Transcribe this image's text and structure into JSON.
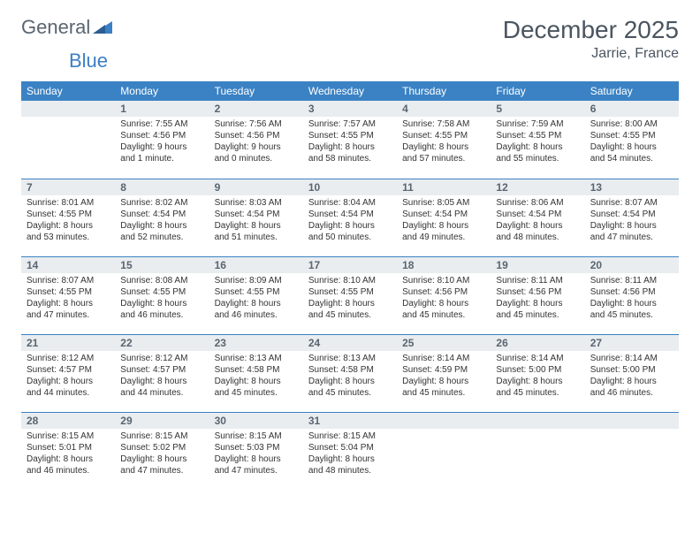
{
  "brand": {
    "part1": "General",
    "part2": "Blue"
  },
  "title": "December 2025",
  "location": "Jarrie, France",
  "colors": {
    "header_bg": "#3b82c4",
    "header_text": "#ffffff",
    "daynum_bg": "#e9edf0",
    "daynum_text": "#5a6570",
    "row_border": "#3b82c4",
    "logo_gray": "#5a6570",
    "logo_blue": "#3b7fc4"
  },
  "dayHeaders": [
    "Sunday",
    "Monday",
    "Tuesday",
    "Wednesday",
    "Thursday",
    "Friday",
    "Saturday"
  ],
  "weeks": [
    [
      null,
      {
        "n": "1",
        "sr": "7:55 AM",
        "ss": "4:56 PM",
        "dl": "9 hours and 1 minute."
      },
      {
        "n": "2",
        "sr": "7:56 AM",
        "ss": "4:56 PM",
        "dl": "9 hours and 0 minutes."
      },
      {
        "n": "3",
        "sr": "7:57 AM",
        "ss": "4:55 PM",
        "dl": "8 hours and 58 minutes."
      },
      {
        "n": "4",
        "sr": "7:58 AM",
        "ss": "4:55 PM",
        "dl": "8 hours and 57 minutes."
      },
      {
        "n": "5",
        "sr": "7:59 AM",
        "ss": "4:55 PM",
        "dl": "8 hours and 55 minutes."
      },
      {
        "n": "6",
        "sr": "8:00 AM",
        "ss": "4:55 PM",
        "dl": "8 hours and 54 minutes."
      }
    ],
    [
      {
        "n": "7",
        "sr": "8:01 AM",
        "ss": "4:55 PM",
        "dl": "8 hours and 53 minutes."
      },
      {
        "n": "8",
        "sr": "8:02 AM",
        "ss": "4:54 PM",
        "dl": "8 hours and 52 minutes."
      },
      {
        "n": "9",
        "sr": "8:03 AM",
        "ss": "4:54 PM",
        "dl": "8 hours and 51 minutes."
      },
      {
        "n": "10",
        "sr": "8:04 AM",
        "ss": "4:54 PM",
        "dl": "8 hours and 50 minutes."
      },
      {
        "n": "11",
        "sr": "8:05 AM",
        "ss": "4:54 PM",
        "dl": "8 hours and 49 minutes."
      },
      {
        "n": "12",
        "sr": "8:06 AM",
        "ss": "4:54 PM",
        "dl": "8 hours and 48 minutes."
      },
      {
        "n": "13",
        "sr": "8:07 AM",
        "ss": "4:54 PM",
        "dl": "8 hours and 47 minutes."
      }
    ],
    [
      {
        "n": "14",
        "sr": "8:07 AM",
        "ss": "4:55 PM",
        "dl": "8 hours and 47 minutes."
      },
      {
        "n": "15",
        "sr": "8:08 AM",
        "ss": "4:55 PM",
        "dl": "8 hours and 46 minutes."
      },
      {
        "n": "16",
        "sr": "8:09 AM",
        "ss": "4:55 PM",
        "dl": "8 hours and 46 minutes."
      },
      {
        "n": "17",
        "sr": "8:10 AM",
        "ss": "4:55 PM",
        "dl": "8 hours and 45 minutes."
      },
      {
        "n": "18",
        "sr": "8:10 AM",
        "ss": "4:56 PM",
        "dl": "8 hours and 45 minutes."
      },
      {
        "n": "19",
        "sr": "8:11 AM",
        "ss": "4:56 PM",
        "dl": "8 hours and 45 minutes."
      },
      {
        "n": "20",
        "sr": "8:11 AM",
        "ss": "4:56 PM",
        "dl": "8 hours and 45 minutes."
      }
    ],
    [
      {
        "n": "21",
        "sr": "8:12 AM",
        "ss": "4:57 PM",
        "dl": "8 hours and 44 minutes."
      },
      {
        "n": "22",
        "sr": "8:12 AM",
        "ss": "4:57 PM",
        "dl": "8 hours and 44 minutes."
      },
      {
        "n": "23",
        "sr": "8:13 AM",
        "ss": "4:58 PM",
        "dl": "8 hours and 45 minutes."
      },
      {
        "n": "24",
        "sr": "8:13 AM",
        "ss": "4:58 PM",
        "dl": "8 hours and 45 minutes."
      },
      {
        "n": "25",
        "sr": "8:14 AM",
        "ss": "4:59 PM",
        "dl": "8 hours and 45 minutes."
      },
      {
        "n": "26",
        "sr": "8:14 AM",
        "ss": "5:00 PM",
        "dl": "8 hours and 45 minutes."
      },
      {
        "n": "27",
        "sr": "8:14 AM",
        "ss": "5:00 PM",
        "dl": "8 hours and 46 minutes."
      }
    ],
    [
      {
        "n": "28",
        "sr": "8:15 AM",
        "ss": "5:01 PM",
        "dl": "8 hours and 46 minutes."
      },
      {
        "n": "29",
        "sr": "8:15 AM",
        "ss": "5:02 PM",
        "dl": "8 hours and 47 minutes."
      },
      {
        "n": "30",
        "sr": "8:15 AM",
        "ss": "5:03 PM",
        "dl": "8 hours and 47 minutes."
      },
      {
        "n": "31",
        "sr": "8:15 AM",
        "ss": "5:04 PM",
        "dl": "8 hours and 48 minutes."
      },
      null,
      null,
      null
    ]
  ],
  "labels": {
    "sunrise": "Sunrise:",
    "sunset": "Sunset:",
    "daylight": "Daylight:"
  }
}
